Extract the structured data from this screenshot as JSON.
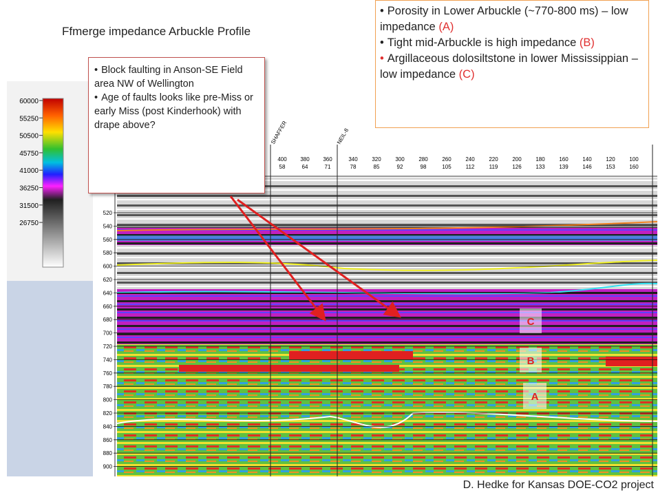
{
  "title": "Ffmerge impedance Arbuckle Profile",
  "callout_right": {
    "items": [
      {
        "text": "Porosity in Lower Arbuckle (~770-800 ms) – low impedance",
        "tag": "(A)"
      },
      {
        "text": "Tight mid-Arbuckle is high impedance",
        "tag": "(B)"
      },
      {
        "text": "Argillaceous dolosiltstone in lower Mississippian – low impedance",
        "tag": "(C)"
      }
    ]
  },
  "callout_left": {
    "items": [
      "Block faulting in Anson-SE Field area NW of Wellington",
      "Age of faults looks like pre-Miss  or early Miss (post Kinderhook) with drape above?"
    ]
  },
  "color_scale": {
    "labels": [
      "60000",
      "55250",
      "50500",
      "45750",
      "41000",
      "36250",
      "31500",
      "26750"
    ]
  },
  "time_axis": {
    "labels": [
      "520",
      "540",
      "560",
      "580",
      "600",
      "620",
      "640",
      "660",
      "680",
      "700",
      "720",
      "740",
      "760",
      "780",
      "800",
      "820",
      "840",
      "860",
      "880",
      "900"
    ]
  },
  "trace_axis": {
    "top": [
      "400",
      "380",
      "360",
      "340",
      "320",
      "300",
      "280",
      "260",
      "240",
      "220",
      "200",
      "180",
      "160",
      "140",
      "120",
      "100"
    ],
    "bottom": [
      "58",
      "64",
      "71",
      "78",
      "85",
      "92",
      "98",
      "105",
      "112",
      "119",
      "126",
      "133",
      "139",
      "146",
      "153",
      "160"
    ]
  },
  "wells": [
    "SHAFFER",
    "NEIL-8"
  ],
  "zone_labels": [
    "C",
    "B",
    "A"
  ],
  "footer": "D. Hedke for Kansas DOE-CO2 project"
}
